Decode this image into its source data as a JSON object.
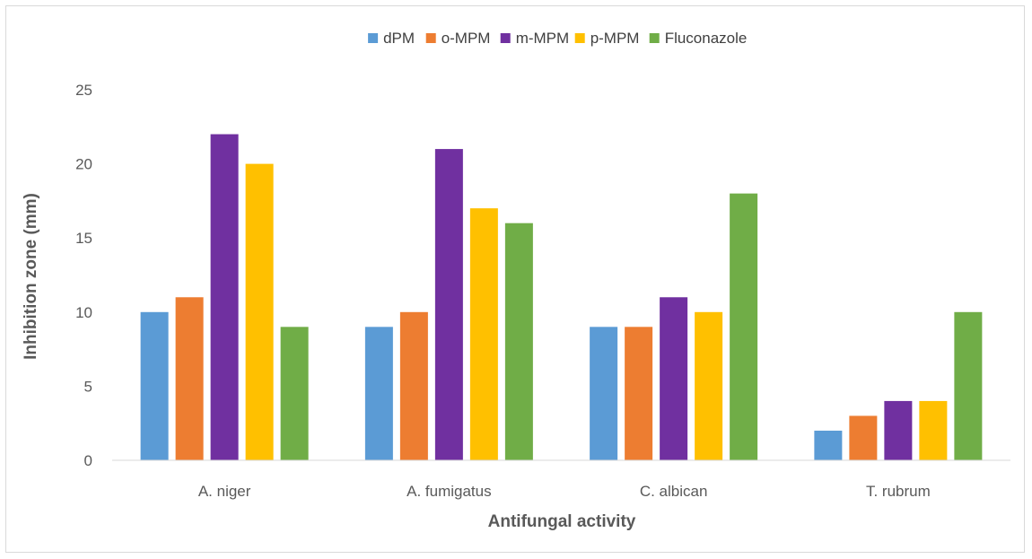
{
  "chart_data": {
    "type": "bar",
    "title": "",
    "xlabel": "Antifungal activity",
    "ylabel": "Inhibition zone (mm)",
    "ylim": [
      0,
      25
    ],
    "yticks": [
      0,
      5,
      10,
      15,
      20,
      25
    ],
    "grid": false,
    "legend_position": "top",
    "categories": [
      "A. niger",
      "A. fumigatus",
      "C. albican",
      "T. rubrum"
    ],
    "series": [
      {
        "name": "dPM",
        "color": "#5b9bd5",
        "values": [
          10,
          9,
          9,
          2
        ]
      },
      {
        "name": "o-MPM",
        "color": "#ed7d31",
        "values": [
          11,
          10,
          9,
          3
        ]
      },
      {
        "name": "m-MPM",
        "color": "#7030a0",
        "values": [
          22,
          21,
          11,
          4
        ]
      },
      {
        "name": "p-MPM",
        "color": "#ffc000",
        "values": [
          20,
          17,
          10,
          4
        ]
      },
      {
        "name": "Fluconazole",
        "color": "#70ad47",
        "values": [
          9,
          16,
          18,
          10
        ]
      }
    ]
  }
}
